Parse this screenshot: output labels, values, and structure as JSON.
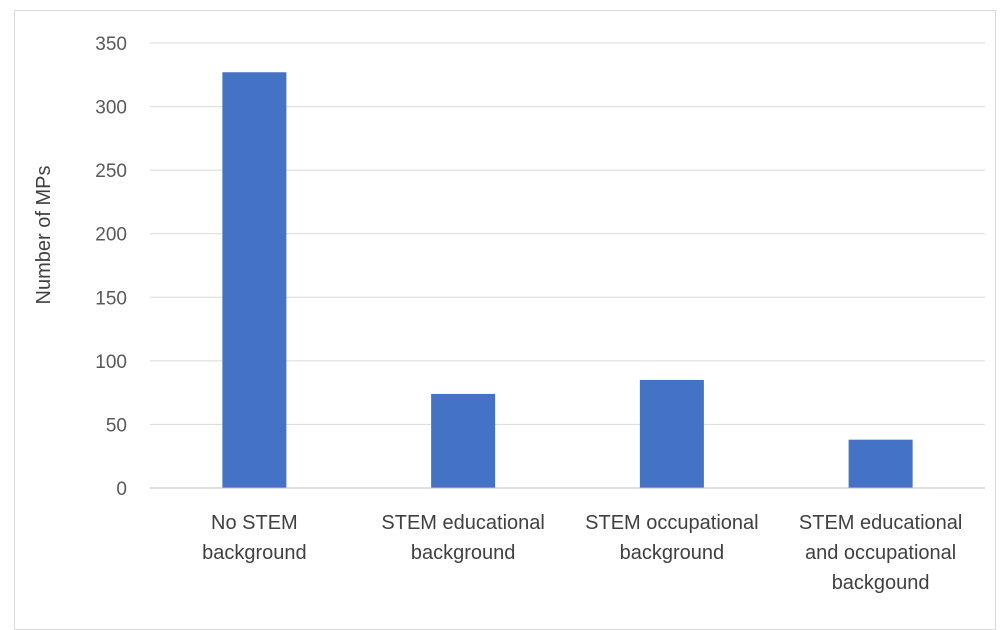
{
  "chart_data": {
    "type": "bar",
    "title": "",
    "xlabel": "",
    "ylabel": "Number of MPs",
    "categories": [
      [
        "No STEM",
        "background"
      ],
      [
        "STEM educational",
        "background"
      ],
      [
        "STEM occupational",
        "background"
      ],
      [
        "STEM educational",
        "and occupational",
        "backgound"
      ]
    ],
    "values": [
      327,
      74,
      85,
      38
    ],
    "ylim": [
      0,
      350
    ],
    "yticks": [
      0,
      50,
      100,
      150,
      200,
      250,
      300,
      350
    ],
    "grid": true,
    "bar_color": "#4472C4",
    "grid_color": "#d9d9d9",
    "axis_color": "#bfbfbf"
  }
}
